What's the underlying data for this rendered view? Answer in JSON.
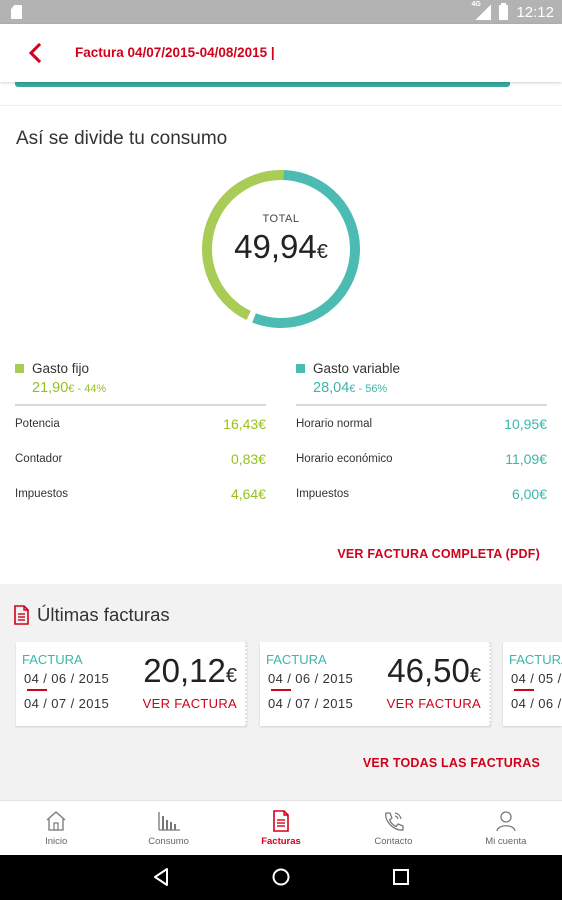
{
  "status_bar": {
    "time": "12:12",
    "network": "4G"
  },
  "header": {
    "title": "Factura 04/07/2015-04/08/2015 |"
  },
  "consumo": {
    "section_title": "Así se divide tu consumo",
    "total_label": "TOTAL",
    "total_value": "49,94",
    "currency": "€",
    "fixed_share": 0.44,
    "variable_share": 0.56,
    "colors": {
      "fixed": "#a8cc55",
      "variable": "#4cbcb2"
    }
  },
  "fijo": {
    "label": "Gasto fijo",
    "amount": "21,90",
    "currency": "€",
    "percent": " - 44%",
    "items": [
      {
        "label": "Potencia",
        "value": "16,43€"
      },
      {
        "label": "Contador",
        "value": "0,83€"
      },
      {
        "label": "Impuestos",
        "value": "4,64€"
      }
    ]
  },
  "variable": {
    "label": "Gasto variable",
    "amount": "28,04",
    "currency": "€",
    "percent": " - 56%",
    "items": [
      {
        "label": "Horario normal",
        "value": "10,95€"
      },
      {
        "label": "Horario económico",
        "value": "11,09€"
      },
      {
        "label": "Impuestos",
        "value": "6,00€"
      }
    ]
  },
  "pdf_link": "VER FACTURA COMPLETA (PDF)",
  "invoices": {
    "title": "Últimas facturas",
    "cards": [
      {
        "label": "FACTURA",
        "date_from": "04 / 06 / 2015",
        "date_to": "04 / 07 / 2015",
        "amount": "20,12",
        "currency": "€",
        "link": "VER FACTURA"
      },
      {
        "label": "FACTURA",
        "date_from": "04 / 06 / 2015",
        "date_to": "04 / 07 / 2015",
        "amount": "46,50",
        "currency": "€",
        "link": "VER FACTURA"
      },
      {
        "label": "FACTURA",
        "date_from": "04 / 05 /",
        "date_to": "04 / 06 /",
        "amount": "",
        "currency": "",
        "link": ""
      }
    ],
    "all_link": "VER TODAS LAS FACTURAS"
  },
  "tabs": [
    {
      "label": "Inicio",
      "icon": "home-icon"
    },
    {
      "label": "Consumo",
      "icon": "bar-chart-icon"
    },
    {
      "label": "Facturas",
      "icon": "document-icon",
      "active": true
    },
    {
      "label": "Contacto",
      "icon": "phone-icon"
    },
    {
      "label": "Mi cuenta",
      "icon": "user-icon"
    }
  ]
}
